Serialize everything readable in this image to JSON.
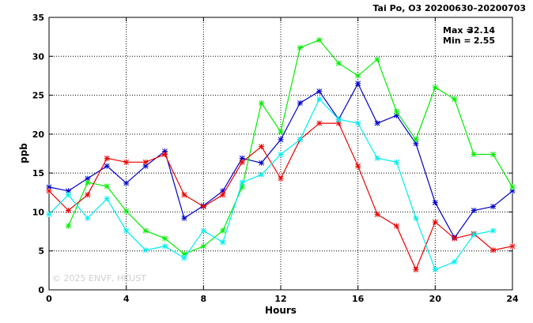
{
  "chart_data": {
    "type": "line",
    "title": "Tai Po, O3 20200630–20200703",
    "xlabel": "Hours",
    "ylabel": "ppb",
    "xlim": [
      0,
      24
    ],
    "ylim": [
      0,
      35
    ],
    "xticks": [
      0,
      4,
      8,
      12,
      16,
      20,
      24
    ],
    "yticks": [
      0,
      5,
      10,
      15,
      20,
      25,
      30,
      35
    ],
    "grid": true,
    "annotations": {
      "max_label": "Max =",
      "max_value": "32.14",
      "min_label": "Min =",
      "min_value": "2.55"
    },
    "watermark": "© 2025  ENVF, HKUST",
    "series": [
      {
        "color": "#0000cc",
        "values": [
          [
            0,
            13.2
          ],
          [
            1,
            12.7
          ],
          [
            2,
            14.3
          ],
          [
            3,
            15.9
          ],
          [
            4,
            13.7
          ],
          [
            5,
            15.9
          ],
          [
            6,
            17.8
          ],
          [
            7,
            9.2
          ],
          [
            8,
            10.8
          ],
          [
            9,
            12.7
          ],
          [
            10,
            16.9
          ],
          [
            11,
            16.3
          ],
          [
            12,
            19.3
          ],
          [
            13,
            24.0
          ],
          [
            14,
            25.5
          ],
          [
            15,
            21.9
          ],
          [
            16,
            26.5
          ],
          [
            17,
            21.4
          ],
          [
            18,
            22.4
          ],
          [
            19,
            18.8
          ],
          [
            20,
            11.2
          ],
          [
            21,
            6.7
          ],
          [
            22,
            10.2
          ],
          [
            23,
            10.7
          ],
          [
            24,
            12.7
          ]
        ]
      },
      {
        "color": "#00ee00",
        "values": [
          [
            1,
            8.2
          ],
          [
            2,
            13.8
          ],
          [
            3,
            13.3
          ],
          [
            4,
            10.1
          ],
          [
            5,
            7.6
          ],
          [
            6,
            6.6
          ],
          [
            7,
            4.6
          ],
          [
            8,
            5.6
          ],
          [
            9,
            7.6
          ],
          [
            10,
            13.2
          ],
          [
            11,
            24.0
          ],
          [
            12,
            20.3
          ],
          [
            13,
            31.1
          ],
          [
            14,
            32.1
          ],
          [
            15,
            29.1
          ],
          [
            16,
            27.5
          ],
          [
            17,
            29.6
          ],
          [
            18,
            22.9
          ],
          [
            19,
            19.3
          ],
          [
            20,
            26.0
          ],
          [
            21,
            24.5
          ],
          [
            22,
            17.4
          ],
          [
            23,
            17.4
          ],
          [
            24,
            13.2
          ]
        ]
      },
      {
        "color": "#ee0000",
        "values": [
          [
            0,
            12.7
          ],
          [
            1,
            10.2
          ],
          [
            2,
            12.2
          ],
          [
            3,
            16.9
          ],
          [
            4,
            16.4
          ],
          [
            5,
            16.4
          ],
          [
            6,
            17.4
          ],
          [
            7,
            12.2
          ],
          [
            8,
            10.7
          ],
          [
            9,
            12.2
          ],
          [
            10,
            16.4
          ],
          [
            11,
            18.4
          ],
          [
            12,
            14.3
          ],
          [
            13,
            19.3
          ],
          [
            14,
            21.4
          ],
          [
            15,
            21.4
          ],
          [
            16,
            15.9
          ],
          [
            17,
            9.7
          ],
          [
            18,
            8.2
          ],
          [
            19,
            2.6
          ],
          [
            20,
            8.7
          ],
          [
            21,
            6.6
          ],
          [
            22,
            7.2
          ],
          [
            23,
            5.1
          ],
          [
            24,
            5.6
          ]
        ]
      },
      {
        "color": "#00eeee",
        "values": [
          [
            0,
            9.7
          ],
          [
            1,
            12.2
          ],
          [
            2,
            9.2
          ],
          [
            3,
            11.7
          ],
          [
            4,
            7.6
          ],
          [
            5,
            5.1
          ],
          [
            6,
            5.6
          ],
          [
            7,
            4.1
          ],
          [
            8,
            7.6
          ],
          [
            9,
            6.1
          ],
          [
            10,
            13.8
          ],
          [
            11,
            14.8
          ],
          [
            12,
            17.4
          ],
          [
            13,
            19.3
          ],
          [
            14,
            24.5
          ],
          [
            15,
            21.9
          ],
          [
            16,
            21.4
          ],
          [
            17,
            16.9
          ],
          [
            18,
            16.4
          ],
          [
            19,
            9.2
          ],
          [
            20,
            2.6
          ],
          [
            21,
            3.6
          ],
          [
            22,
            7.1
          ],
          [
            23,
            7.6
          ]
        ]
      }
    ]
  }
}
